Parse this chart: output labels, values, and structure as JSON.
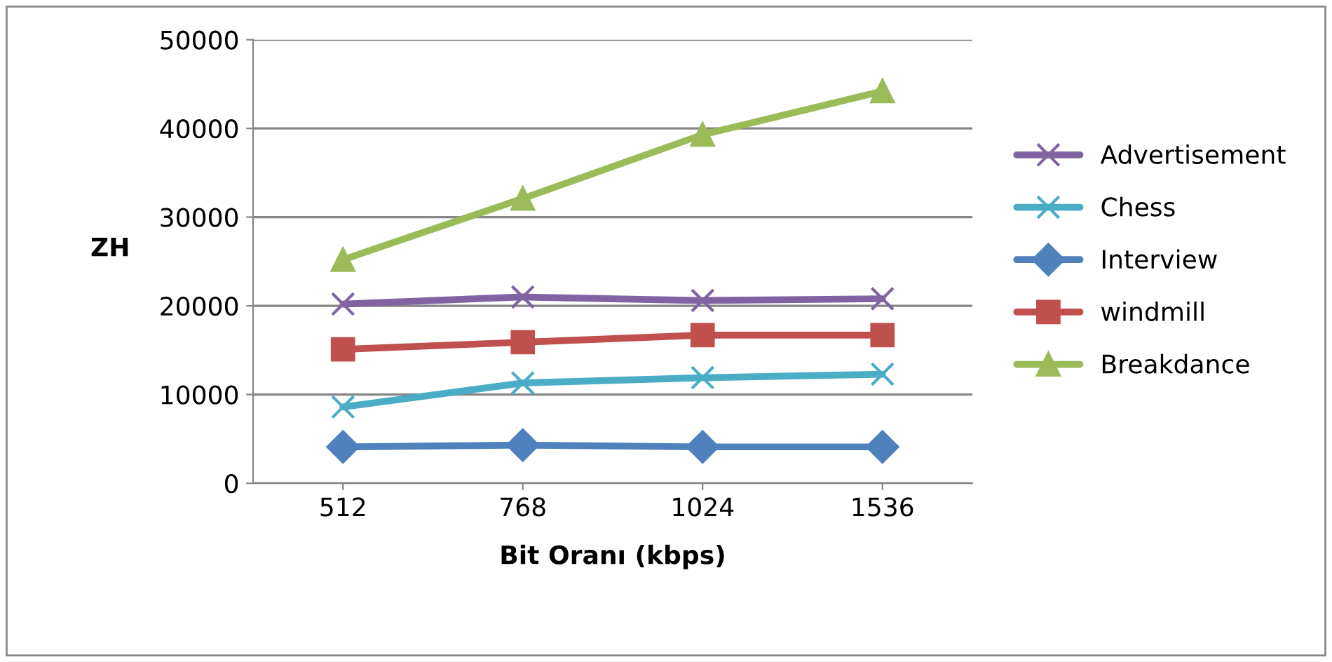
{
  "chart_data": {
    "type": "line",
    "xlabel": "Bit Oranı (kbps)",
    "ylabel": "ZH",
    "categories": [
      "512",
      "768",
      "1024",
      "1536"
    ],
    "series": [
      {
        "name": "Advertisement",
        "color": "#8064a2",
        "marker": "cross",
        "values": [
          20200,
          21000,
          20600,
          20800
        ]
      },
      {
        "name": "Chess",
        "color": "#4bacc6",
        "marker": "cross",
        "values": [
          8600,
          11300,
          11900,
          12300
        ]
      },
      {
        "name": "Interview",
        "color": "#4f81bd",
        "marker": "diamond",
        "values": [
          4100,
          4300,
          4100,
          4100
        ]
      },
      {
        "name": "windmill",
        "color": "#c0504d",
        "marker": "square",
        "values": [
          15100,
          15900,
          16700,
          16700
        ]
      },
      {
        "name": "Breakdance",
        "color": "#9bbb59",
        "marker": "triangle",
        "values": [
          25200,
          32100,
          39300,
          44200
        ]
      }
    ],
    "ylim": [
      0,
      50000
    ],
    "yticks": [
      0,
      10000,
      20000,
      30000,
      40000,
      50000
    ],
    "grid": "y",
    "legend": "right",
    "line_style": "solid"
  }
}
